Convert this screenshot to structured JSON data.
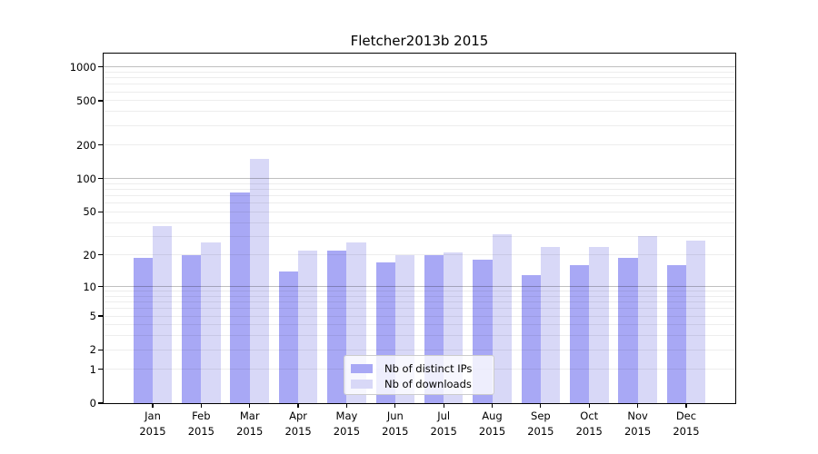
{
  "chart_data": {
    "type": "bar",
    "title": "Fletcher2013b 2015",
    "categories": [
      "Jan",
      "Feb",
      "Mar",
      "Apr",
      "May",
      "Jun",
      "Jul",
      "Aug",
      "Sep",
      "Oct",
      "Nov",
      "Dec"
    ],
    "year_label": "2015",
    "series": [
      {
        "name": "Nb of distinct IPs",
        "color": "#a8a8f5",
        "values": [
          19,
          20,
          75,
          14,
          22,
          17,
          20,
          18,
          13,
          16,
          19,
          16
        ]
      },
      {
        "name": "Nb of downloads",
        "color": "#d8d8f7",
        "values": [
          37,
          26,
          150,
          22,
          26,
          20,
          21,
          31,
          24,
          24,
          30,
          27
        ]
      }
    ],
    "y_ticks": [
      0,
      1,
      2,
      5,
      10,
      20,
      50,
      100,
      200,
      500,
      1000
    ],
    "grid_minor": [
      1,
      2,
      3,
      4,
      5,
      6,
      7,
      8,
      9,
      20,
      30,
      40,
      50,
      60,
      70,
      80,
      90,
      200,
      300,
      400,
      500,
      600,
      700,
      800,
      900
    ],
    "grid_major": [
      10,
      100,
      1000
    ],
    "yscale": "log1p",
    "ylim": [
      0,
      1320
    ],
    "xlabel": "",
    "ylabel": "",
    "grid": true,
    "legend_position": "lower-center-inside"
  }
}
